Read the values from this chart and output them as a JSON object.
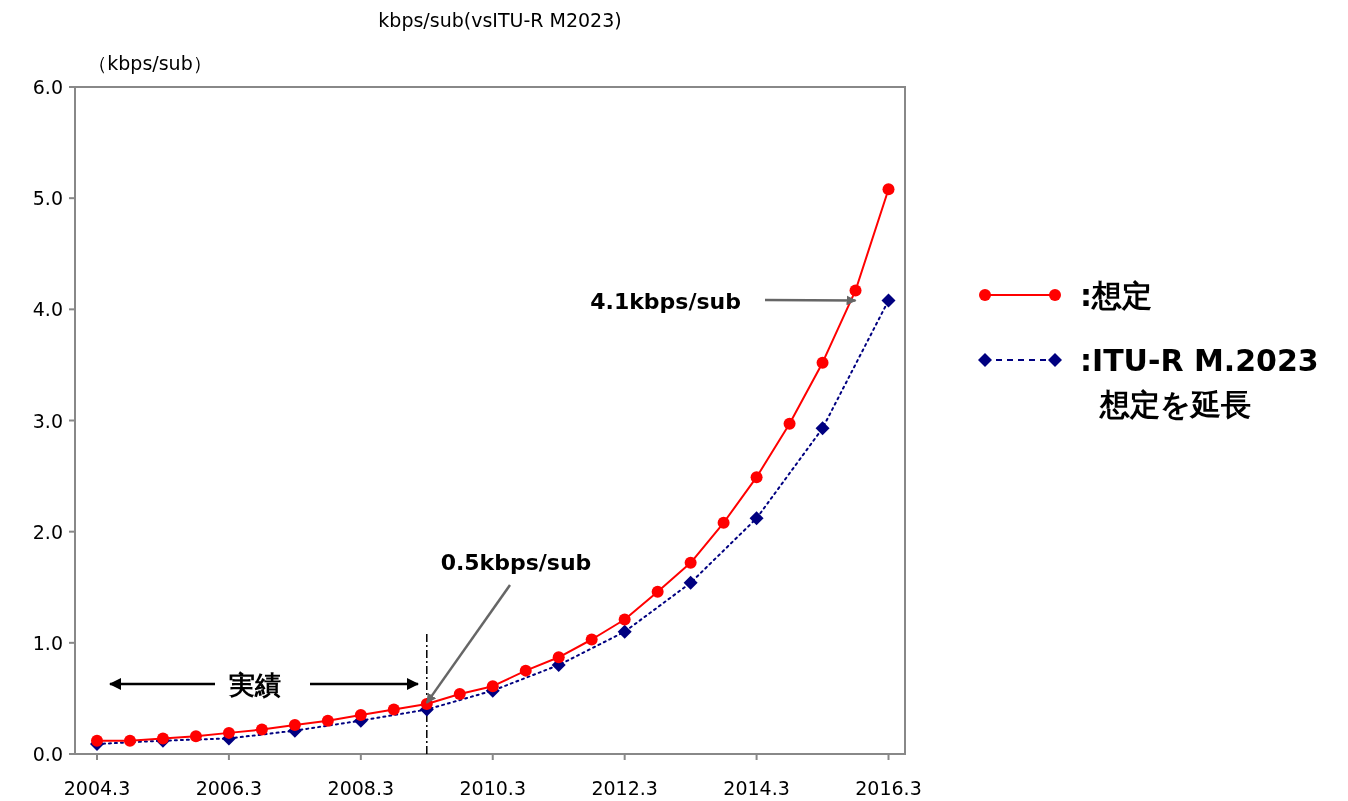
{
  "chart_data": {
    "type": "line",
    "title": "kbps/sub(vsITU-R M2023)",
    "ylabel": "（kbps/sub）",
    "x": [
      "2004-03",
      "2004-09",
      "2005-03",
      "2005-09",
      "2006-03",
      "2006-09",
      "2007-03",
      "2007-09",
      "2008-03",
      "2008-09",
      "2009-03",
      "2009-09",
      "2010-03",
      "2010-09",
      "2011-03",
      "2011-09",
      "2012-03",
      "2012-09",
      "2013-03",
      "2013-09",
      "2014-03",
      "2014-09",
      "2015-03",
      "2015-09",
      "2016-03"
    ],
    "series": [
      {
        "name": ":想定",
        "color": "#ff0000",
        "marker": "circle",
        "line_style": "solid",
        "values": [
          0.12,
          0.12,
          0.14,
          0.16,
          0.19,
          0.22,
          0.26,
          0.3,
          0.35,
          0.4,
          0.45,
          0.54,
          0.61,
          0.75,
          0.87,
          1.03,
          1.21,
          1.46,
          1.72,
          2.08,
          2.49,
          2.97,
          3.52,
          4.17,
          5.08
        ]
      },
      {
        "name": ":ITU-R M.2023\n想定を延長",
        "color": "#000080",
        "marker": "diamond",
        "line_style": "dotted",
        "values": [
          0.09,
          null,
          0.12,
          null,
          0.14,
          null,
          0.21,
          null,
          0.3,
          null,
          0.4,
          null,
          0.57,
          null,
          0.8,
          null,
          1.1,
          null,
          1.54,
          null,
          2.12,
          null,
          2.93,
          null,
          4.08
        ]
      }
    ],
    "xlim": [
      "2003-11",
      "2016-06"
    ],
    "xticks": [
      {
        "value": "2004-03",
        "label": "2004.3"
      },
      {
        "value": "2006-03",
        "label": "2006.3"
      },
      {
        "value": "2008-03",
        "label": "2008.3"
      },
      {
        "value": "2010-03",
        "label": "2010.3"
      },
      {
        "value": "2012-03",
        "label": "2012.3"
      },
      {
        "value": "2014-03",
        "label": "2014.3"
      },
      {
        "value": "2016-03",
        "label": "2016.3"
      }
    ],
    "ylim": [
      0,
      6
    ],
    "yticks": [
      {
        "value": 0,
        "label": "0.0"
      },
      {
        "value": 1,
        "label": "1.0"
      },
      {
        "value": 2,
        "label": "2.0"
      },
      {
        "value": 3,
        "label": "3.0"
      },
      {
        "value": 4,
        "label": "4.0"
      },
      {
        "value": 5,
        "label": "5.0"
      },
      {
        "value": 6,
        "label": "6.0"
      }
    ],
    "ref_lines": [
      {
        "axis": "x",
        "value": "2009-03",
        "line_style": "dashdot"
      }
    ],
    "annotations": [
      {
        "text": "4.1kbps/sub",
        "x": "2015-09",
        "y": 4.08
      },
      {
        "text": "0.5kbps/sub",
        "x": "2009-03",
        "y": 0.46
      },
      "実績"
    ],
    "grid": false,
    "legend": "right"
  }
}
